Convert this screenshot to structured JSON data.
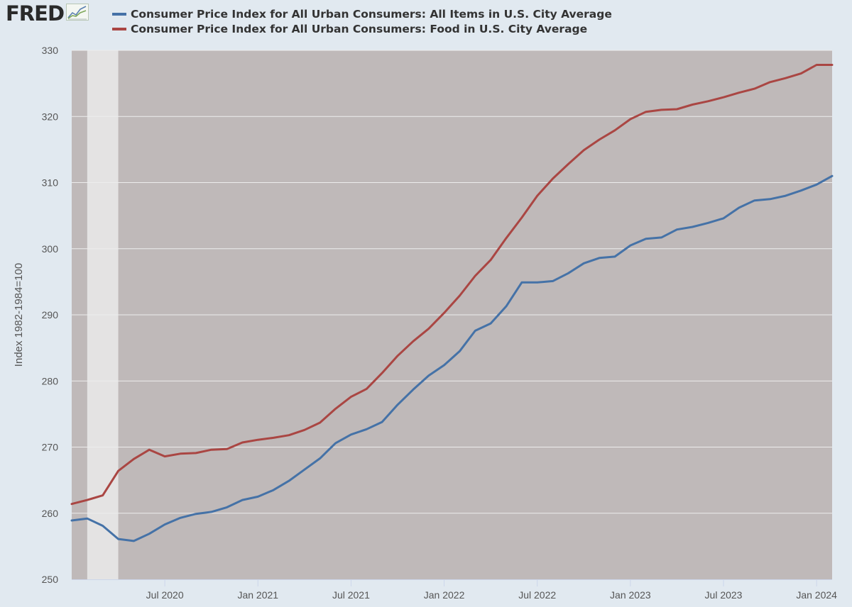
{
  "header": {
    "logo_text": "FRED",
    "logo_icon": "line-chart-icon"
  },
  "chart_data": {
    "type": "line",
    "ylabel": "Index 1982-1984=100",
    "ylim": [
      250,
      330
    ],
    "yticks": [
      250,
      260,
      270,
      280,
      290,
      300,
      310,
      320,
      330
    ],
    "xlim": [
      "2020-01",
      "2024-02"
    ],
    "xticks": [
      {
        "date": "2020-07",
        "label": "Jul 2020"
      },
      {
        "date": "2021-01",
        "label": "Jan 2021"
      },
      {
        "date": "2021-07",
        "label": "Jul 2021"
      },
      {
        "date": "2022-01",
        "label": "Jan 2022"
      },
      {
        "date": "2022-07",
        "label": "Jul 2022"
      },
      {
        "date": "2023-01",
        "label": "Jan 2023"
      },
      {
        "date": "2023-07",
        "label": "Jul 2023"
      },
      {
        "date": "2024-01",
        "label": "Jan 2024"
      }
    ],
    "recession": {
      "start": "2020-02",
      "end": "2020-04"
    },
    "grid": true,
    "legend": "top",
    "colors": {
      "plot_bg": "#bfb9b9",
      "recession": "#e4e3e3",
      "grid": "#ededed"
    },
    "x": [
      "2020-01",
      "2020-02",
      "2020-03",
      "2020-04",
      "2020-05",
      "2020-06",
      "2020-07",
      "2020-08",
      "2020-09",
      "2020-10",
      "2020-11",
      "2020-12",
      "2021-01",
      "2021-02",
      "2021-03",
      "2021-04",
      "2021-05",
      "2021-06",
      "2021-07",
      "2021-08",
      "2021-09",
      "2021-10",
      "2021-11",
      "2021-12",
      "2022-01",
      "2022-02",
      "2022-03",
      "2022-04",
      "2022-05",
      "2022-06",
      "2022-07",
      "2022-08",
      "2022-09",
      "2022-10",
      "2022-11",
      "2022-12",
      "2023-01",
      "2023-02",
      "2023-03",
      "2023-04",
      "2023-05",
      "2023-06",
      "2023-07",
      "2023-08",
      "2023-09",
      "2023-10",
      "2023-11",
      "2023-12",
      "2024-01",
      "2024-02"
    ],
    "series": [
      {
        "name": "Consumer Price Index for All Urban Consumers: All Items in U.S. City Average",
        "color": "#4572a7",
        "values": [
          258.9,
          259.2,
          258.1,
          256.1,
          255.8,
          256.9,
          258.3,
          259.3,
          259.9,
          260.2,
          260.9,
          262.0,
          262.5,
          263.5,
          264.9,
          266.6,
          268.3,
          270.6,
          271.9,
          272.7,
          273.8,
          276.4,
          278.7,
          280.8,
          282.4,
          284.5,
          287.6,
          288.7,
          291.3,
          294.9,
          294.9,
          295.1,
          296.3,
          297.8,
          298.6,
          298.8,
          300.5,
          301.5,
          301.7,
          302.9,
          303.3,
          303.9,
          304.6,
          306.2,
          307.3,
          307.5,
          308.0,
          308.8,
          309.7,
          311.0
        ]
      },
      {
        "name": "Consumer Price Index for All Urban Consumers: Food in U.S. City Average",
        "color": "#aa4643",
        "values": [
          261.4,
          262.0,
          262.7,
          266.4,
          268.2,
          269.6,
          268.6,
          269.0,
          269.1,
          269.6,
          269.7,
          270.7,
          271.1,
          271.4,
          271.8,
          272.6,
          273.7,
          275.8,
          277.6,
          278.8,
          281.2,
          283.8,
          286.0,
          287.9,
          290.3,
          292.9,
          295.9,
          298.3,
          301.6,
          304.7,
          308.0,
          310.6,
          312.8,
          314.9,
          316.5,
          317.9,
          319.6,
          320.7,
          321.0,
          321.1,
          321.8,
          322.3,
          322.9,
          323.6,
          324.2,
          325.2,
          325.8,
          326.5,
          327.8,
          327.8
        ]
      }
    ]
  }
}
